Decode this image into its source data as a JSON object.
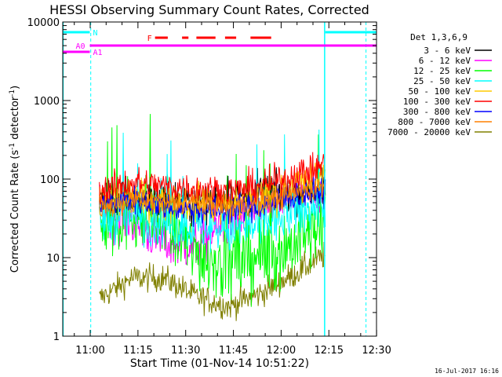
{
  "chart_data": {
    "type": "line",
    "title": "HESSI Observing Summary Count Rates, Corrected",
    "xlabel": "Start Time (01-Nov-14 10:51:22)",
    "ylabel": "Corrected Count Rate (s⁻¹ detector⁻¹)",
    "ylabel_main": "Corrected Count Rate (s",
    "ylabel_sup1": "-1",
    "ylabel_mid": " detector",
    "ylabel_sup2": "-1",
    "ylabel_end": ")",
    "x_unit": "minutes after 10:51:22",
    "xlim": [
      0,
      98.6
    ],
    "ylim": [
      1,
      10000
    ],
    "yscale": "log",
    "x_ticks": [
      {
        "value": 8.63,
        "label": "11:00"
      },
      {
        "value": 23.63,
        "label": "11:15"
      },
      {
        "value": 38.63,
        "label": "11:30"
      },
      {
        "value": 53.63,
        "label": "11:45"
      },
      {
        "value": 68.63,
        "label": "12:00"
      },
      {
        "value": 83.63,
        "label": "12:15"
      },
      {
        "value": 98.63,
        "label": "12:30"
      }
    ],
    "y_ticks": [
      {
        "value": 1,
        "label": "1"
      },
      {
        "value": 10,
        "label": "10"
      },
      {
        "value": 100,
        "label": "100"
      },
      {
        "value": 1000,
        "label": "1000"
      },
      {
        "value": 10000,
        "label": "10000"
      }
    ],
    "legend_title": "Det 1,3,6,9",
    "legend_position": "right",
    "data_range": [
      11.5,
      82.5
    ],
    "series": [
      {
        "name": "3 - 6 keV",
        "color": "#000000",
        "base": [
          60,
          55,
          55,
          50,
          60,
          65,
          70,
          75
        ],
        "noise": 0.35
      },
      {
        "name": "6 - 12 keV",
        "color": "#ff00ff",
        "base": [
          40,
          30,
          15,
          14,
          30,
          40,
          60,
          80
        ],
        "noise": 0.45
      },
      {
        "name": "12 - 25 keV",
        "color": "#00ff00",
        "base": [
          20,
          40,
          25,
          12,
          8,
          10,
          15,
          25
        ],
        "noise": 0.7
      },
      {
        "name": "25 - 50 keV",
        "color": "#00ffff",
        "base": [
          30,
          35,
          28,
          25,
          22,
          25,
          35,
          50
        ],
        "noise": 0.45
      },
      {
        "name": "50 - 100 keV",
        "color": "#ffcc00",
        "base": [
          50,
          60,
          50,
          50,
          45,
          55,
          80,
          110
        ],
        "noise": 0.35
      },
      {
        "name": "100 - 300 keV",
        "color": "#ff0000",
        "base": [
          70,
          90,
          80,
          75,
          70,
          80,
          110,
          150
        ],
        "noise": 0.3
      },
      {
        "name": "300 - 800 keV",
        "color": "#0000ff",
        "base": [
          45,
          55,
          45,
          40,
          40,
          45,
          60,
          70
        ],
        "noise": 0.25
      },
      {
        "name": "800 - 7000 keV",
        "color": "#ff8000",
        "base": [
          40,
          55,
          50,
          50,
          45,
          50,
          65,
          80
        ],
        "noise": 0.22
      },
      {
        "name": "7000 - 20000 keV",
        "color": "#808000",
        "base": [
          3,
          5.5,
          5.5,
          3.2,
          2.4,
          3.5,
          6,
          11
        ],
        "noise": 0.25
      }
    ],
    "markers": {
      "N": "N",
      "A0": "A0",
      "A1": "A1",
      "F": "F",
      "N_color": "#00ffff",
      "A_color": "#ff00ff",
      "F_color": "#ff0000",
      "N_segments": [
        [
          0,
          8.5
        ],
        [
          82.5,
          98.6
        ]
      ],
      "A0_segment": [
        0,
        8.5
      ],
      "A1_segment": [
        8.5,
        98.6
      ],
      "F_segments": [
        [
          29,
          33
        ],
        [
          37.5,
          39.5
        ],
        [
          42,
          48
        ],
        [
          51,
          54.5
        ],
        [
          59,
          65.5
        ]
      ],
      "night_lines_solid": [
        0.1,
        82.3
      ],
      "night_lines_dashed": [
        8.8,
        95.3
      ]
    },
    "timestamp": "16-Jul-2017 16:16"
  }
}
